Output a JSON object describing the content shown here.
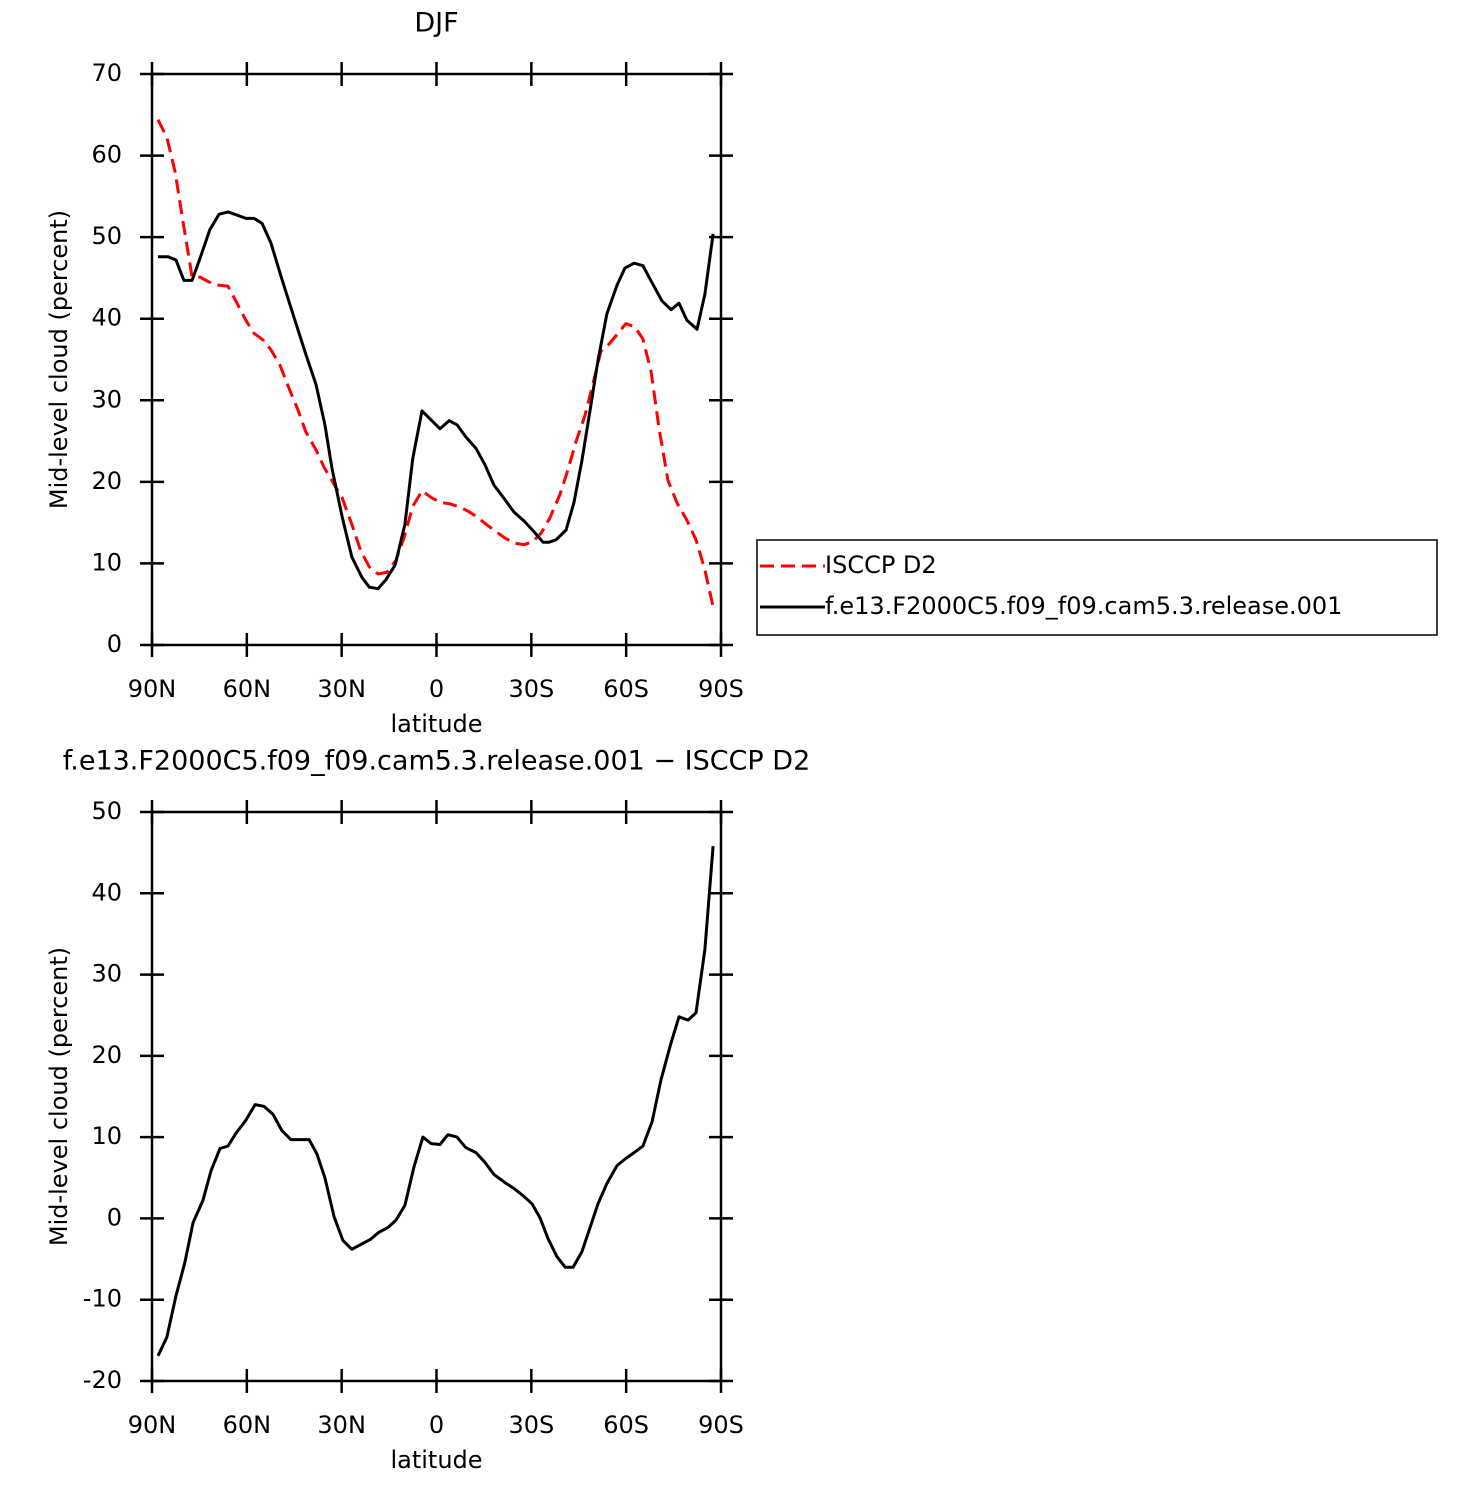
{
  "chart_data": [
    {
      "type": "line",
      "title": "DJF",
      "xlabel": "latitude",
      "ylabel": "Mid-level cloud (percent)",
      "xlim": [
        90,
        -90
      ],
      "xticks": [
        {
          "value": 90,
          "label": "90N"
        },
        {
          "value": 60,
          "label": "60N"
        },
        {
          "value": 30,
          "label": "30N"
        },
        0,
        {
          "value": -30,
          "label": "30S"
        },
        {
          "value": -60,
          "label": "60S"
        },
        {
          "value": -90,
          "label": "90S"
        }
      ],
      "ylim": [
        0,
        70
      ],
      "yticks": [
        0,
        10,
        20,
        30,
        40,
        50,
        60,
        70
      ],
      "legend": "right",
      "series": [
        {
          "name": "ISCCP D2",
          "color": "#ff0000",
          "dash": true,
          "x": [
            88.1,
            85.3,
            82.7,
            80.2,
            77.3,
            74.8,
            72.0,
            68.8,
            66.0,
            63.1,
            60.3,
            57.7,
            54.9,
            52.4,
            49.5,
            46.7,
            43.8,
            41.3,
            38.1,
            35.6,
            32.4,
            29.9,
            26.8,
            23.9,
            21.3,
            18.5,
            15.7,
            12.8,
            10.3,
            7.5,
            4.6,
            1.7,
            -1.1,
            -4.3,
            -7.4,
            -10.0,
            -12.8,
            -15.7,
            -18.5,
            -21.7,
            -24.5,
            -27.7,
            -30.5,
            -33.1,
            -35.9,
            -39.1,
            -41.6,
            -44.1,
            -47.0,
            -49.8,
            -52.0,
            -54.6,
            -57.4,
            -59.9,
            -62.8,
            -65.3,
            -67.9,
            -70.4,
            -73.2,
            -76.1,
            -79.2,
            -82.1,
            -84.9,
            -87.5
          ],
          "values": [
            64.4,
            62.2,
            58.0,
            51.9,
            45.1,
            45.1,
            44.5,
            44.1,
            44.0,
            41.9,
            39.8,
            38.2,
            37.4,
            36.2,
            34.3,
            31.5,
            28.8,
            26.1,
            23.9,
            21.8,
            19.7,
            18.1,
            14.8,
            11.5,
            9.6,
            8.7,
            8.9,
            10.4,
            13.1,
            17.0,
            18.9,
            18.1,
            17.5,
            17.3,
            16.9,
            16.4,
            15.7,
            14.8,
            14.0,
            13.1,
            12.5,
            12.3,
            12.7,
            13.7,
            15.6,
            18.5,
            21.5,
            24.9,
            28.2,
            32.5,
            36.0,
            36.9,
            38.2,
            39.4,
            39.0,
            37.5,
            33.5,
            26.6,
            20.2,
            17.4,
            15.3,
            12.9,
            9.2,
            4.7
          ]
        },
        {
          "name": "f.e13.F2000C5.f09_f09.cam5.3.release.001",
          "color": "#000000",
          "dash": false,
          "x": [
            88.1,
            84.9,
            82.4,
            79.9,
            77.3,
            74.8,
            71.7,
            68.8,
            66.0,
            63.1,
            60.3,
            57.7,
            55.2,
            52.4,
            49.2,
            46.1,
            41.3,
            38.1,
            35.3,
            33.1,
            29.9,
            26.8,
            23.6,
            21.3,
            18.5,
            16.0,
            13.1,
            10.0,
            7.5,
            4.6,
            1.7,
            -1.1,
            -4.0,
            -6.5,
            -9.3,
            -12.5,
            -15.3,
            -18.2,
            -21.7,
            -24.5,
            -27.7,
            -30.8,
            -33.7,
            -35.6,
            -37.8,
            -41.0,
            -43.5,
            -46.0,
            -48.6,
            -51.1,
            -53.9,
            -57.1,
            -59.6,
            -62.5,
            -65.3,
            -68.2,
            -71.3,
            -74.2,
            -76.7,
            -79.2,
            -82.4,
            -84.9,
            -87.5
          ],
          "values": [
            47.6,
            47.6,
            47.2,
            44.7,
            44.7,
            47.4,
            50.9,
            52.8,
            53.1,
            52.7,
            52.3,
            52.3,
            51.7,
            49.3,
            45.2,
            41.4,
            35.6,
            31.9,
            27.0,
            21.7,
            15.8,
            10.8,
            8.3,
            7.1,
            6.9,
            8.0,
            9.8,
            14.8,
            22.9,
            28.7,
            27.6,
            26.5,
            27.5,
            27.0,
            25.5,
            24.1,
            22.1,
            19.6,
            17.8,
            16.3,
            15.2,
            13.9,
            12.6,
            12.6,
            12.9,
            14.1,
            17.5,
            22.6,
            28.8,
            34.9,
            40.6,
            44.1,
            46.2,
            46.8,
            46.5,
            44.4,
            42.2,
            41.1,
            41.9,
            39.8,
            38.7,
            43.0,
            50.4
          ]
        }
      ]
    },
    {
      "type": "line",
      "title": "f.e13.F2000C5.f09_f09.cam5.3.release.001 − ISCCP D2",
      "xlabel": "latitude",
      "ylabel": "Mid-level cloud (percent)",
      "xlim": [
        90,
        -90
      ],
      "xticks": [
        {
          "value": 90,
          "label": "90N"
        },
        {
          "value": 60,
          "label": "60N"
        },
        {
          "value": 30,
          "label": "30N"
        },
        0,
        {
          "value": -30,
          "label": "30S"
        },
        {
          "value": -60,
          "label": "60S"
        },
        {
          "value": -90,
          "label": "90S"
        }
      ],
      "ylim": [
        -20,
        50
      ],
      "yticks": [
        -20,
        -10,
        0,
        10,
        20,
        30,
        40,
        50
      ],
      "series": [
        {
          "color": "#000000",
          "dash": false,
          "x": [
            88.1,
            85.3,
            82.4,
            79.6,
            77.0,
            73.9,
            71.3,
            68.5,
            66.0,
            63.4,
            60.3,
            57.4,
            54.6,
            51.7,
            48.9,
            46.1,
            43.2,
            40.3,
            37.8,
            35.3,
            32.4,
            29.6,
            26.8,
            23.9,
            21.0,
            18.2,
            15.3,
            12.8,
            10.0,
            7.1,
            4.3,
            1.7,
            -1.1,
            -3.6,
            -6.5,
            -9.3,
            -12.5,
            -15.3,
            -18.2,
            -21.7,
            -24.5,
            -27.4,
            -30.2,
            -32.7,
            -35.3,
            -38.1,
            -40.7,
            -43.2,
            -46.0,
            -48.6,
            -51.1,
            -53.9,
            -57.1,
            -59.6,
            -62.5,
            -65.3,
            -68.2,
            -71.0,
            -73.9,
            -76.7,
            -79.6,
            -82.1,
            -84.9,
            -87.5
          ],
          "values": [
            -16.9,
            -14.6,
            -9.5,
            -5.4,
            -0.5,
            2.2,
            5.9,
            8.6,
            8.9,
            10.5,
            12.1,
            14.0,
            13.8,
            12.8,
            10.8,
            9.7,
            9.7,
            9.7,
            7.9,
            5.0,
            0.2,
            -2.7,
            -3.8,
            -3.2,
            -2.6,
            -1.7,
            -1.1,
            -0.2,
            1.6,
            6.4,
            10.0,
            9.2,
            9.1,
            10.3,
            10.0,
            8.7,
            8.1,
            6.9,
            5.4,
            4.4,
            3.7,
            2.8,
            1.8,
            0.1,
            -2.5,
            -4.7,
            -6.0,
            -6.0,
            -4.1,
            -1.1,
            1.8,
            4.3,
            6.5,
            7.3,
            8.1,
            8.9,
            11.9,
            17.0,
            21.2,
            24.8,
            24.4,
            25.3,
            33.1,
            45.8
          ]
        }
      ]
    }
  ]
}
